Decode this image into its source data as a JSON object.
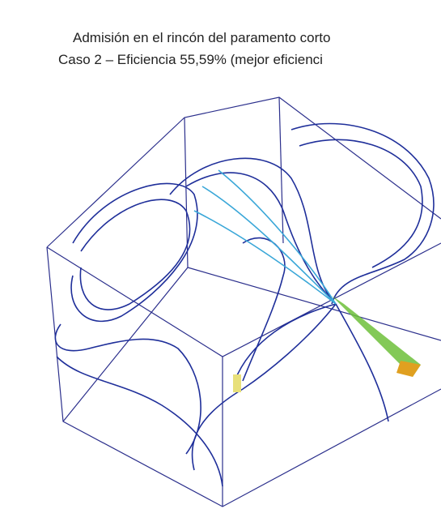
{
  "title": {
    "line1": "Admisión en el rincón del paramento corto",
    "line2": "Caso 2 – Eficiencia 55,59% (mejor eficienci"
  }
}
